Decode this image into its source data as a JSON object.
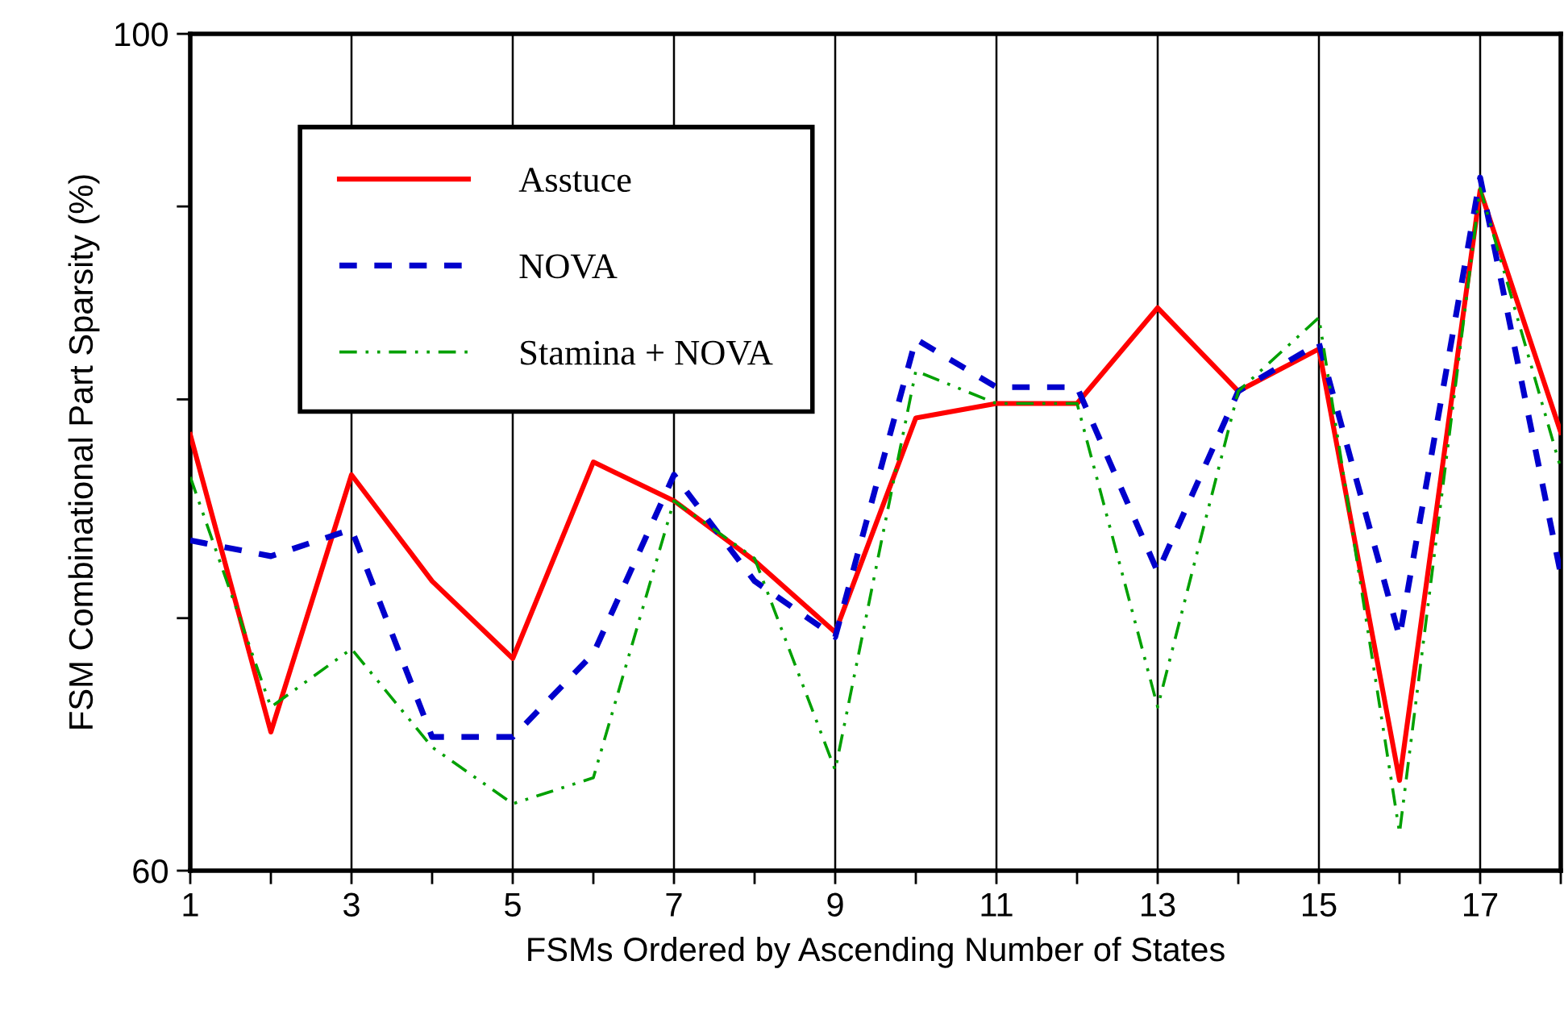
{
  "chart_data": {
    "type": "line",
    "xlabel": "FSMs Ordered by Ascending Number of States",
    "ylabel": "FSM Combinational Part Sparsity (%)",
    "x": [
      1,
      2,
      3,
      4,
      5,
      6,
      7,
      8,
      9,
      10,
      11,
      12,
      13,
      14,
      15,
      16,
      17,
      18
    ],
    "series": [
      {
        "name": "Asstuce",
        "color": "#ff0000",
        "line_style": "solid",
        "values": [
          78.3,
          65.3,
          76.4,
          71.6,
          68.3,
          77.0,
          75.2,
          72.5,
          69.4,
          79.1,
          79.8,
          79.8,
          84.6,
          80.4,
          82.5,
          63.4,
          90.9,
          78.4
        ]
      },
      {
        "name": "NOVA",
        "color": "#0000cc",
        "line_style": "dashed",
        "values": [
          73.4,
          72.7,
          73.9,
          65.1,
          65.1,
          68.5,
          76.4,
          71.6,
          69.2,
          83.0,
          80.6,
          80.6,
          72.0,
          80.4,
          82.8,
          69.2,
          91.6,
          71.9
        ]
      },
      {
        "name": "Stamina + NOVA",
        "color": "#00a000",
        "line_style": "dotted",
        "values": [
          76.3,
          66.3,
          68.7,
          64.7,
          62.5,
          63.5,
          75.2,
          72.6,
          63.8,
          81.4,
          79.8,
          79.8,
          66.3,
          80.4,
          84.1,
          61.4,
          91.0,
          76.7
        ]
      }
    ],
    "log": "y",
    "xlim": [
      1,
      18
    ],
    "ylim": [
      60,
      100
    ],
    "xticks": [
      1,
      {
        "value": 2,
        "label": null
      },
      3,
      {
        "value": 4,
        "label": null
      },
      5,
      {
        "value": 6,
        "label": null
      },
      7,
      {
        "value": 8,
        "label": null
      },
      9,
      {
        "value": 10,
        "label": null
      },
      11,
      {
        "value": 12,
        "label": null
      },
      13,
      {
        "value": 14,
        "label": null
      },
      15,
      {
        "value": 16,
        "label": null
      },
      17,
      {
        "value": 18,
        "label": null
      }
    ],
    "yticks": [
      60,
      {
        "value": 70,
        "label": null
      },
      {
        "value": 80,
        "label": null
      },
      {
        "value": 90,
        "label": null
      },
      100
    ],
    "grid": "x",
    "legend": "top left",
    "marker": "none"
  }
}
